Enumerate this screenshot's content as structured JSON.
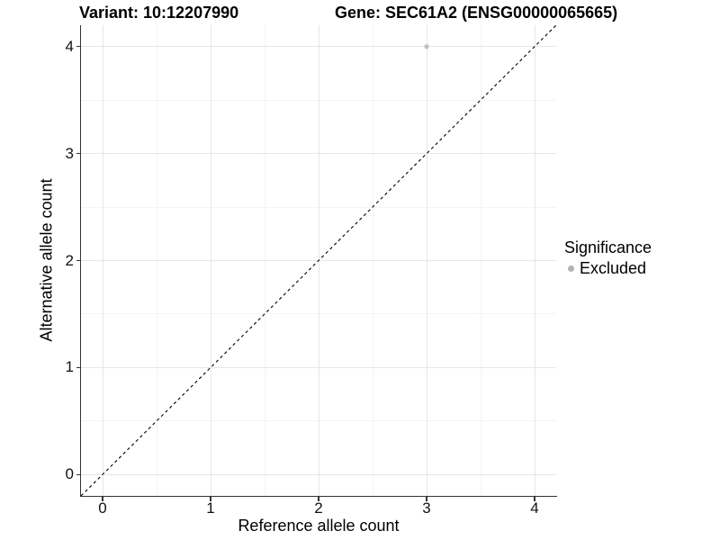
{
  "titles": {
    "variant": "Variant: 10:12207990",
    "gene": "Gene: SEC61A2 (ENSG00000065665)"
  },
  "legend": {
    "title": "Significance",
    "items": [
      {
        "label": "Excluded",
        "color": "#b3b3b3"
      }
    ]
  },
  "chart_data": {
    "type": "scatter",
    "title_left": "Variant: 10:12207990",
    "title_right": "Gene: SEC61A2 (ENSG00000065665)",
    "xlabel": "Reference allele count",
    "ylabel": "Alternative allele count",
    "xlim": [
      -0.2,
      4.2
    ],
    "ylim": [
      -0.2,
      4.2
    ],
    "x_ticks": [
      0,
      1,
      2,
      3,
      4
    ],
    "y_ticks": [
      0,
      1,
      2,
      3,
      4
    ],
    "x_minor": [
      0.5,
      1.5,
      2.5,
      3.5
    ],
    "y_minor": [
      0.5,
      1.5,
      2.5,
      3.5
    ],
    "grid": "major and minor, light gray, on white panel",
    "legend_position": "right",
    "legend_title": "Significance",
    "series": [
      {
        "name": "Excluded",
        "color": "#c0c0c0",
        "point_radius": 2.6,
        "points": [
          {
            "x": 3,
            "y": 4
          }
        ]
      }
    ],
    "identity_line": {
      "equation": "y = x",
      "style": "dashed",
      "color": "#000000",
      "span": [
        [
          -0.2,
          -0.2
        ],
        [
          4.2,
          4.2
        ]
      ]
    }
  }
}
